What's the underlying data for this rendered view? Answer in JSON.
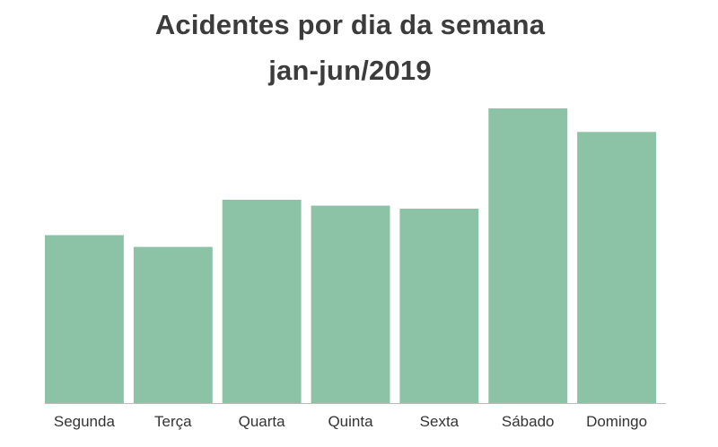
{
  "chart_data": {
    "type": "bar",
    "title": "Acidentes por dia da semana",
    "subtitle": "jan-jun/2019",
    "categories": [
      "Segunda",
      "Terça",
      "Quarta",
      "Quinta",
      "Sexta",
      "Sábado",
      "Domingo"
    ],
    "values": [
      57,
      53,
      69,
      67,
      66,
      100,
      92
    ],
    "ylim": [
      0,
      100
    ],
    "grid": false,
    "legend": "none",
    "bar_color": "#8cc3a6",
    "axis_color": "#bcbcbc",
    "label_color": "#333333"
  }
}
